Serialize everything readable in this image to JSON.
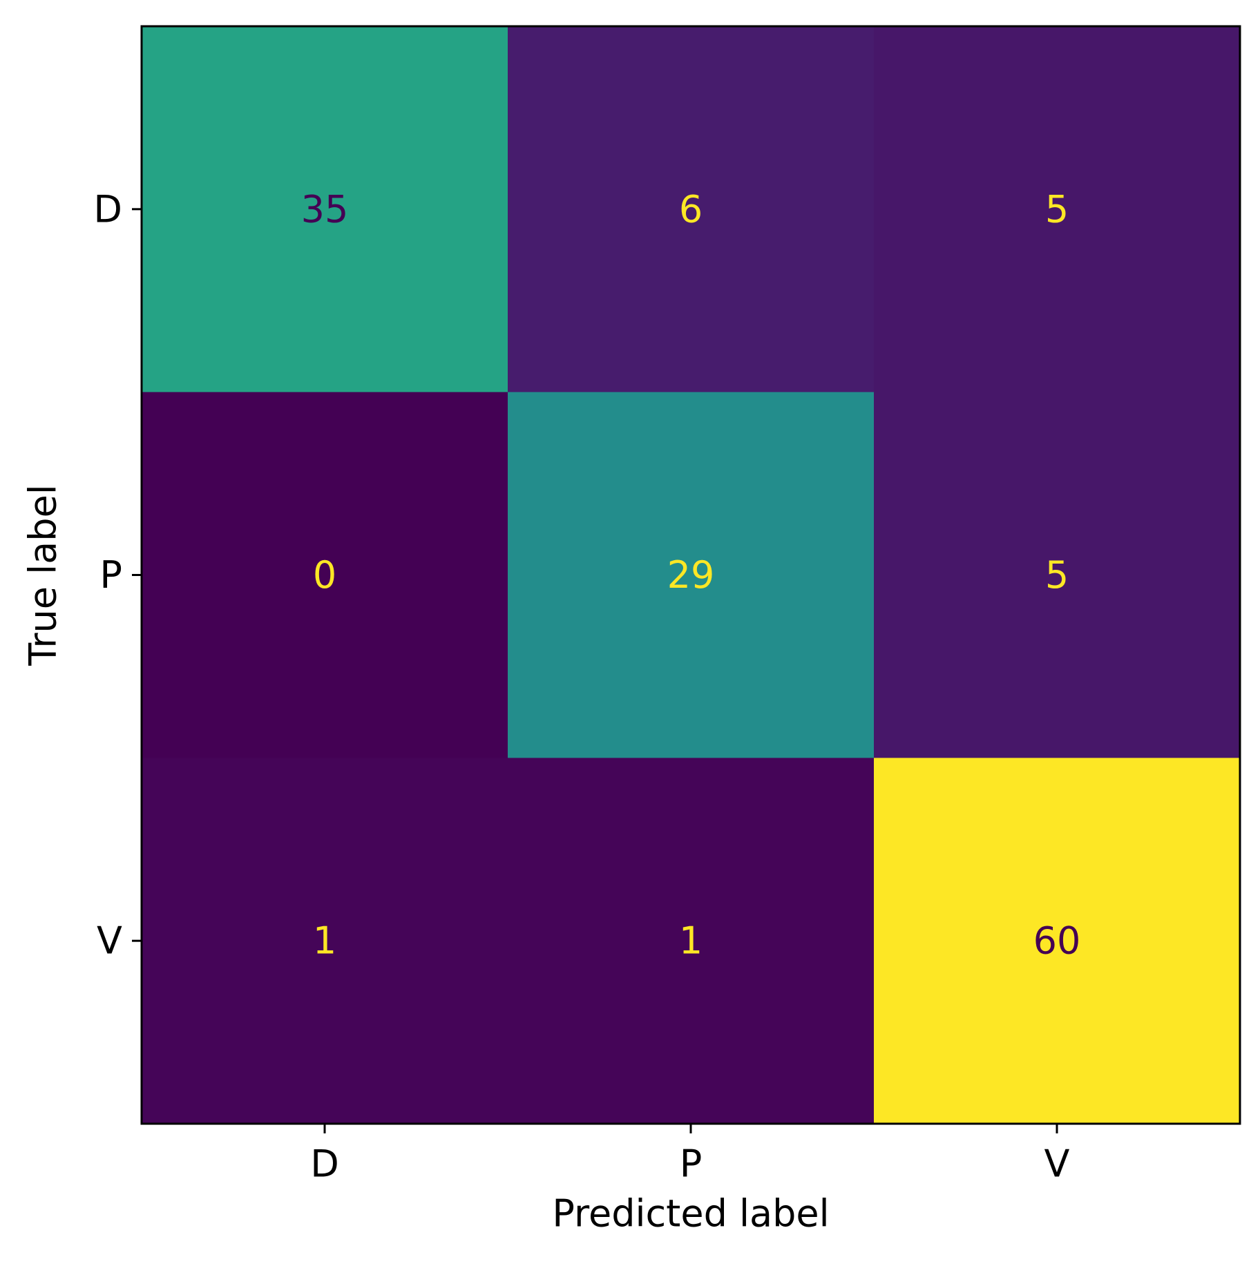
{
  "chart_data": {
    "type": "heatmap",
    "title": "",
    "xlabel": "Predicted label",
    "ylabel": "True label",
    "x_categories": [
      "D",
      "P",
      "V"
    ],
    "y_categories": [
      "D",
      "P",
      "V"
    ],
    "values": [
      [
        35,
        6,
        5
      ],
      [
        0,
        29,
        5
      ],
      [
        1,
        1,
        60
      ]
    ],
    "value_labels": [
      [
        "35",
        "6",
        "5"
      ],
      [
        "0",
        "29",
        "5"
      ],
      [
        "1",
        "1",
        "60"
      ]
    ],
    "colormap": "viridis",
    "value_range": [
      0,
      60
    ],
    "colorbar": false,
    "grid": false,
    "text_colors": {
      "on_dark": "#fde725",
      "on_light": "#440154"
    }
  }
}
